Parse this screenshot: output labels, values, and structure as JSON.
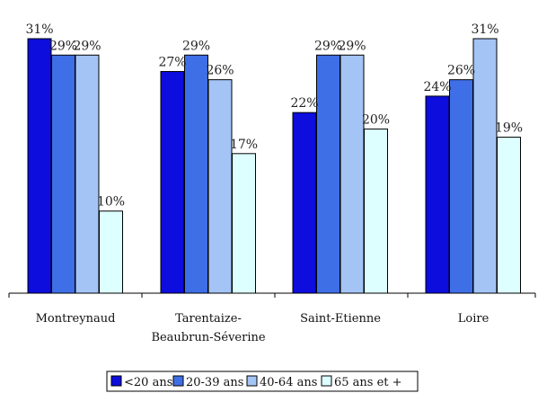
{
  "chart_data": {
    "type": "bar",
    "categories": [
      [
        "Montreynaud"
      ],
      [
        "Tarentaize-",
        "Beaubrun-Séverine"
      ],
      [
        "Saint-Etienne"
      ],
      [
        "Loire"
      ]
    ],
    "series": [
      {
        "name": "<20 ans",
        "color": "#0d0ddd",
        "values": [
          31,
          27,
          22,
          24
        ],
        "labels": [
          "31%",
          "27%",
          "22%",
          "24%"
        ]
      },
      {
        "name": "20-39 ans",
        "color": "#3f6fe6",
        "values": [
          29,
          29,
          29,
          26
        ],
        "labels": [
          "29%",
          "29%",
          "29%",
          "26%"
        ]
      },
      {
        "name": "40-64 ans",
        "color": "#a3c4f5",
        "values": [
          29,
          26,
          29,
          31
        ],
        "labels": [
          "29%",
          "26%",
          "29%",
          "31%"
        ]
      },
      {
        "name": "65 ans et +",
        "color": "#ddffff",
        "values": [
          10,
          17,
          20,
          19
        ],
        "labels": [
          "10%",
          "17%",
          "20%",
          "19%"
        ]
      }
    ],
    "ylim": [
      0,
      31
    ],
    "grid": false,
    "legend_position": "bottom"
  }
}
